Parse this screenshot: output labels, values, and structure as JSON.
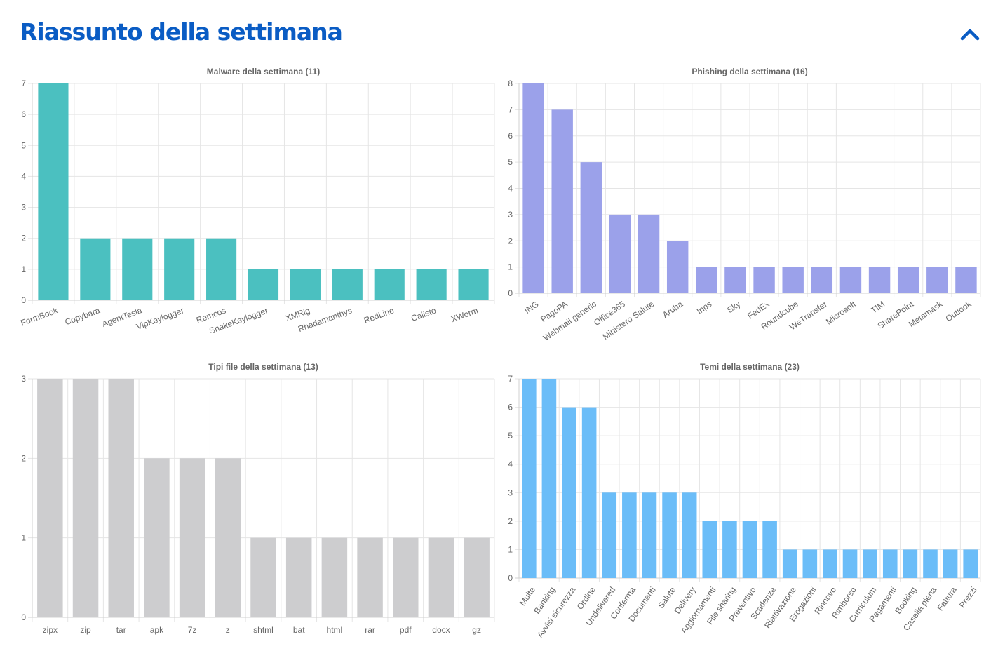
{
  "header": {
    "title": "Riassunto della settimana",
    "collapse_icon": "chevron-up-icon",
    "accent_color": "#0a5cc4"
  },
  "chart_data": [
    {
      "type": "bar",
      "title": "Malware della settimana (11)",
      "categories": [
        "FormBook",
        "Copybara",
        "AgentTesla",
        "VipKeylogger",
        "Remcos",
        "SnakeKeylogger",
        "XMRig",
        "Rhadamanthys",
        "RedLine",
        "Calisto",
        "XWorm"
      ],
      "values": [
        7,
        2,
        2,
        2,
        2,
        1,
        1,
        1,
        1,
        1,
        1
      ],
      "ylim": [
        0,
        7
      ],
      "yticks": [
        0,
        1,
        2,
        3,
        4,
        5,
        6,
        7
      ],
      "color": "#4bc0c0",
      "grid": true,
      "xlabel_rotated": true
    },
    {
      "type": "bar",
      "title": "Phishing della settimana (16)",
      "categories": [
        "ING",
        "PagoPA",
        "Webmail generic",
        "Office365",
        "Ministero Salute",
        "Aruba",
        "Inps",
        "Sky",
        "FedEx",
        "Roundcube",
        "WeTransfer",
        "Microsoft",
        "TIM",
        "SharePoint",
        "Metamask",
        "Outlook"
      ],
      "values": [
        8,
        7,
        5,
        3,
        3,
        2,
        1,
        1,
        1,
        1,
        1,
        1,
        1,
        1,
        1,
        1
      ],
      "ylim": [
        0,
        8
      ],
      "yticks": [
        0,
        1,
        2,
        3,
        4,
        5,
        6,
        7,
        8
      ],
      "color": "#9ba1ea",
      "grid": true,
      "xlabel_rotated": true
    },
    {
      "type": "bar",
      "title": "Tipi file della settimana (13)",
      "categories": [
        "zipx",
        "zip",
        "tar",
        "apk",
        "7z",
        "z",
        "shtml",
        "bat",
        "html",
        "rar",
        "pdf",
        "docx",
        "gz"
      ],
      "values": [
        3,
        3,
        3,
        2,
        2,
        2,
        1,
        1,
        1,
        1,
        1,
        1,
        1
      ],
      "ylim": [
        0,
        3
      ],
      "yticks": [
        0,
        1,
        2,
        3
      ],
      "color": "#cdcdcf",
      "grid": true,
      "xlabel_rotated": false
    },
    {
      "type": "bar",
      "title": "Temi della settimana (23)",
      "categories": [
        "Multe",
        "Banking",
        "Avvisi sicurezza",
        "Ordine",
        "Undelivered",
        "Conferma",
        "Documenti",
        "Salute",
        "Delivery",
        "Aggiornamenti",
        "File sharing",
        "Preventivo",
        "Scadenze",
        "Riattivazione",
        "Erogazioni",
        "Rinnovo",
        "Rimborso",
        "Curriculum",
        "Pagamenti",
        "Booking",
        "Casella piena",
        "Fattura",
        "Prezzi"
      ],
      "values": [
        7,
        7,
        6,
        6,
        3,
        3,
        3,
        3,
        3,
        2,
        2,
        2,
        2,
        1,
        1,
        1,
        1,
        1,
        1,
        1,
        1,
        1,
        1
      ],
      "ylim": [
        0,
        7
      ],
      "yticks": [
        0,
        1,
        2,
        3,
        4,
        5,
        6,
        7
      ],
      "color": "#6bbdf8",
      "grid": true,
      "xlabel_rotated": true
    }
  ]
}
